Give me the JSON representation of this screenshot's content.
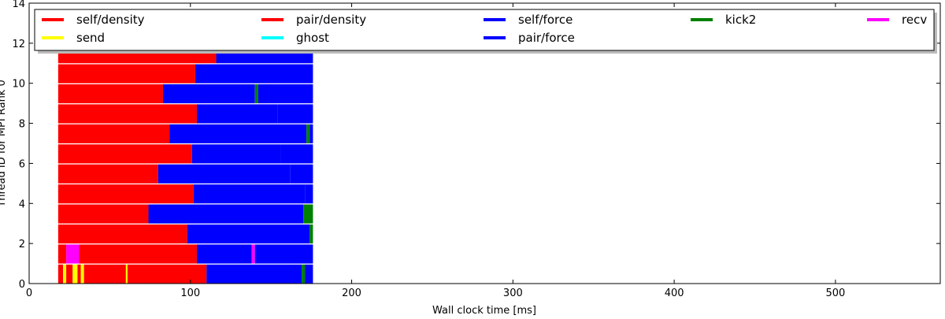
{
  "chart_data": {
    "type": "timeline",
    "xlabel": "Wall clock time [ms]",
    "ylabel": "Thread ID for MPI Rank 0",
    "xlim": [
      0,
      565
    ],
    "ylim": [
      0,
      14
    ],
    "x_ticks": [
      0,
      100,
      200,
      300,
      400,
      500
    ],
    "x_tick_labels": [
      "0",
      "100",
      "200",
      "300",
      "400",
      "500"
    ],
    "y_ticks": [
      0,
      2,
      4,
      6,
      8,
      10,
      12,
      14
    ],
    "y_tick_labels": [
      "0",
      "2",
      "4",
      "6",
      "8",
      "10",
      "12",
      "14"
    ],
    "grid": false,
    "legend_position": "top",
    "legend": [
      {
        "label": "self/density",
        "color": "#ff0000"
      },
      {
        "label": "pair/density",
        "color": "#ff0000"
      },
      {
        "label": "self/force",
        "color": "#0000ff"
      },
      {
        "label": "kick2",
        "color": "#008000"
      },
      {
        "label": "recv",
        "color": "#ff00ff"
      },
      {
        "label": "send",
        "color": "#ffff00"
      },
      {
        "label": "ghost",
        "color": "#00ffff"
      },
      {
        "label": "pair/force",
        "color": "#0000ff"
      }
    ],
    "threads": [
      {
        "thread": 0,
        "segments": [
          {
            "start": 18,
            "end": 21,
            "task": "self/density"
          },
          {
            "start": 21,
            "end": 23,
            "task": "send"
          },
          {
            "start": 23,
            "end": 27,
            "task": "self/density"
          },
          {
            "start": 27,
            "end": 30,
            "task": "send"
          },
          {
            "start": 30,
            "end": 32,
            "task": "self/density"
          },
          {
            "start": 32,
            "end": 34,
            "task": "send"
          },
          {
            "start": 34,
            "end": 60,
            "task": "pair/density"
          },
          {
            "start": 60,
            "end": 61,
            "task": "send"
          },
          {
            "start": 61,
            "end": 110,
            "task": "pair/density"
          },
          {
            "start": 110,
            "end": 169,
            "task": "pair/force"
          },
          {
            "start": 169,
            "end": 171,
            "task": "kick2"
          },
          {
            "start": 171,
            "end": 176,
            "task": "self/force"
          }
        ]
      },
      {
        "thread": 1,
        "segments": [
          {
            "start": 18,
            "end": 23,
            "task": "self/density"
          },
          {
            "start": 23,
            "end": 31,
            "task": "recv"
          },
          {
            "start": 31,
            "end": 104,
            "task": "pair/density"
          },
          {
            "start": 104,
            "end": 138,
            "task": "pair/force"
          },
          {
            "start": 138,
            "end": 140,
            "task": "recv"
          },
          {
            "start": 140,
            "end": 176,
            "task": "pair/force"
          }
        ]
      },
      {
        "thread": 2,
        "segments": [
          {
            "start": 18,
            "end": 98,
            "task": "pair/density"
          },
          {
            "start": 98,
            "end": 174,
            "task": "pair/force"
          },
          {
            "start": 174,
            "end": 176,
            "task": "kick2"
          }
        ]
      },
      {
        "thread": 3,
        "segments": [
          {
            "start": 18,
            "end": 74,
            "task": "pair/density"
          },
          {
            "start": 74,
            "end": 170,
            "task": "pair/force"
          },
          {
            "start": 170,
            "end": 176,
            "task": "kick2"
          }
        ]
      },
      {
        "thread": 4,
        "segments": [
          {
            "start": 18,
            "end": 102,
            "task": "pair/density"
          },
          {
            "start": 102,
            "end": 171,
            "task": "pair/force"
          },
          {
            "start": 171,
            "end": 176,
            "task": "self/force"
          }
        ]
      },
      {
        "thread": 5,
        "segments": [
          {
            "start": 18,
            "end": 80,
            "task": "pair/density"
          },
          {
            "start": 80,
            "end": 162,
            "task": "pair/force"
          },
          {
            "start": 162,
            "end": 176,
            "task": "self/force"
          }
        ]
      },
      {
        "thread": 6,
        "segments": [
          {
            "start": 18,
            "end": 101,
            "task": "pair/density"
          },
          {
            "start": 101,
            "end": 156,
            "task": "pair/force"
          },
          {
            "start": 156,
            "end": 176,
            "task": "self/force"
          }
        ]
      },
      {
        "thread": 7,
        "segments": [
          {
            "start": 18,
            "end": 87,
            "task": "pair/density"
          },
          {
            "start": 87,
            "end": 172,
            "task": "pair/force"
          },
          {
            "start": 172,
            "end": 174,
            "task": "kick2"
          },
          {
            "start": 174,
            "end": 176,
            "task": "self/force"
          }
        ]
      },
      {
        "thread": 8,
        "segments": [
          {
            "start": 18,
            "end": 104,
            "task": "pair/density"
          },
          {
            "start": 104,
            "end": 154,
            "task": "pair/force"
          },
          {
            "start": 154,
            "end": 176,
            "task": "self/force"
          }
        ]
      },
      {
        "thread": 9,
        "segments": [
          {
            "start": 18,
            "end": 83,
            "task": "pair/density"
          },
          {
            "start": 83,
            "end": 140,
            "task": "pair/force"
          },
          {
            "start": 140,
            "end": 142,
            "task": "kick2"
          },
          {
            "start": 142,
            "end": 176,
            "task": "pair/force"
          }
        ]
      },
      {
        "thread": 10,
        "segments": [
          {
            "start": 18,
            "end": 103,
            "task": "pair/density"
          },
          {
            "start": 103,
            "end": 176,
            "task": "pair/force"
          }
        ]
      },
      {
        "thread": 11,
        "segments": [
          {
            "start": 18,
            "end": 116,
            "task": "pair/density"
          },
          {
            "start": 116,
            "end": 176,
            "task": "pair/force"
          }
        ]
      }
    ]
  }
}
